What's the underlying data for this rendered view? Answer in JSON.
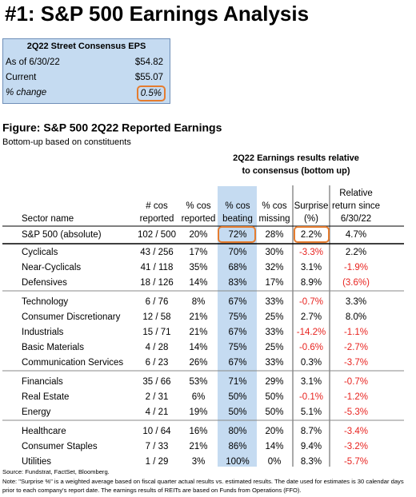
{
  "header": {
    "title": "#1: S&P 500 Earnings Analysis"
  },
  "eps_box": {
    "title": "2Q22 Street Consensus EPS",
    "rows": [
      [
        "As of 6/30/22",
        "$54.82"
      ],
      [
        "Current",
        "$55.07"
      ],
      [
        "% change",
        "0.5%"
      ]
    ]
  },
  "figure": {
    "title": "Figure: S&P 500 2Q22 Reported Earnings",
    "subtitle": "Bottom-up based on constituents"
  },
  "table": {
    "group_header": [
      "2Q22 Earnings results relative",
      "to consensus (bottom up)"
    ],
    "columns": [
      [
        "Sector name"
      ],
      [
        "# cos",
        "reported"
      ],
      [
        "% cos",
        "reported"
      ],
      [
        "% cos",
        "beating"
      ],
      [
        "% cos",
        "missing"
      ],
      [
        "Surprise",
        "(%)"
      ],
      [
        "Relative",
        "return since",
        "6/30/22"
      ]
    ],
    "total": [
      "S&P 500 (absolute)",
      "102 / 500",
      "20%",
      "72%",
      "28%",
      "2.2%",
      "4.7%"
    ],
    "groups": [
      [
        [
          "Cyclicals",
          "43 / 256",
          "17%",
          "70%",
          "30%",
          "-3.3%",
          "2.2%"
        ],
        [
          "Near-Cyclicals",
          "41 / 118",
          "35%",
          "68%",
          "32%",
          "3.1%",
          "-1.9%"
        ],
        [
          "Defensives",
          "18 / 126",
          "14%",
          "83%",
          "17%",
          "8.9%",
          "(3.6%)"
        ]
      ],
      [
        [
          "Technology",
          "6 / 76",
          "8%",
          "67%",
          "33%",
          "-0.7%",
          "3.3%"
        ],
        [
          "Consumer Discretionary",
          "12 / 58",
          "21%",
          "75%",
          "25%",
          "2.7%",
          "8.0%"
        ],
        [
          "Industrials",
          "15 / 71",
          "21%",
          "67%",
          "33%",
          "-14.2%",
          "-1.1%"
        ],
        [
          "Basic Materials",
          "4 / 28",
          "14%",
          "75%",
          "25%",
          "-0.6%",
          "-2.7%"
        ],
        [
          "Communication Services",
          "6 / 23",
          "26%",
          "67%",
          "33%",
          "0.3%",
          "-3.7%"
        ]
      ],
      [
        [
          "Financials",
          "35 / 66",
          "53%",
          "71%",
          "29%",
          "3.1%",
          "-0.7%"
        ],
        [
          "Real Estate",
          "2 / 31",
          "6%",
          "50%",
          "50%",
          "-0.1%",
          "-1.2%"
        ],
        [
          "Energy",
          "4 / 21",
          "19%",
          "50%",
          "50%",
          "5.1%",
          "-5.3%"
        ]
      ],
      [
        [
          "Healthcare",
          "10 / 64",
          "16%",
          "80%",
          "20%",
          "8.7%",
          "-3.4%"
        ],
        [
          "Consumer Staples",
          "7 / 33",
          "21%",
          "86%",
          "14%",
          "9.4%",
          "-3.2%"
        ],
        [
          "Utilities",
          "1 / 29",
          "3%",
          "100%",
          "0%",
          "8.3%",
          "-5.7%"
        ]
      ]
    ]
  },
  "footer": {
    "source": "Source: Fundstrat, FactSet, Bloomberg.",
    "note": "Note: \"Surprise %\" is a weighted average based on fiscal quarter actual results vs. estimated results.  The date used for estimates is 30 calendar days prior to each company's report date. The earnings results of REITs are based on Funds from Operations (FFO)."
  }
}
